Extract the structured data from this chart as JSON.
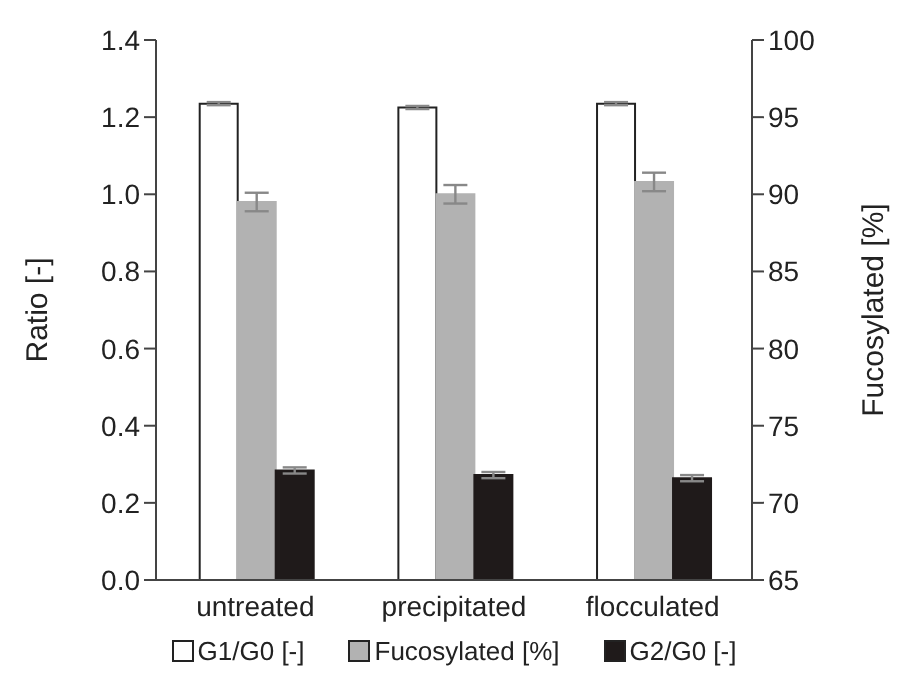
{
  "chart_data": {
    "type": "bar",
    "ylabel": "Ratio [-]",
    "y2label": "Fucosylated [%]",
    "categories": [
      "untreated",
      "precipitated",
      "flocculated"
    ],
    "series": [
      {
        "name": "G1/G0 [-]",
        "color": "#ffffff",
        "values": [
          1.235,
          1.225,
          1.235
        ],
        "errors": [
          0.004,
          0.004,
          0.004
        ]
      },
      {
        "name": "Fucosylated [%]",
        "color": "#b2b2b2",
        "values": [
          89.5,
          90.0,
          90.8
        ],
        "errors": [
          0.6,
          0.6,
          0.6
        ],
        "axis": "y2"
      },
      {
        "name": "G2/G0 [-]",
        "color": "#1f1a1a",
        "values": [
          0.284,
          0.272,
          0.264
        ],
        "errors": [
          0.008,
          0.008,
          0.008
        ]
      }
    ],
    "ylim": [
      0,
      1.4
    ],
    "yticks": [
      {
        "value": 0,
        "label": "0.0"
      },
      0.2,
      0.4,
      0.6,
      0.8,
      {
        "value": 1,
        "label": "1.0"
      },
      1.2,
      1.4
    ],
    "y2lim": [
      65,
      100
    ],
    "y2ticks": [
      65,
      70,
      75,
      80,
      85,
      90,
      95,
      100
    ],
    "grid": false,
    "legend": "bottom"
  }
}
